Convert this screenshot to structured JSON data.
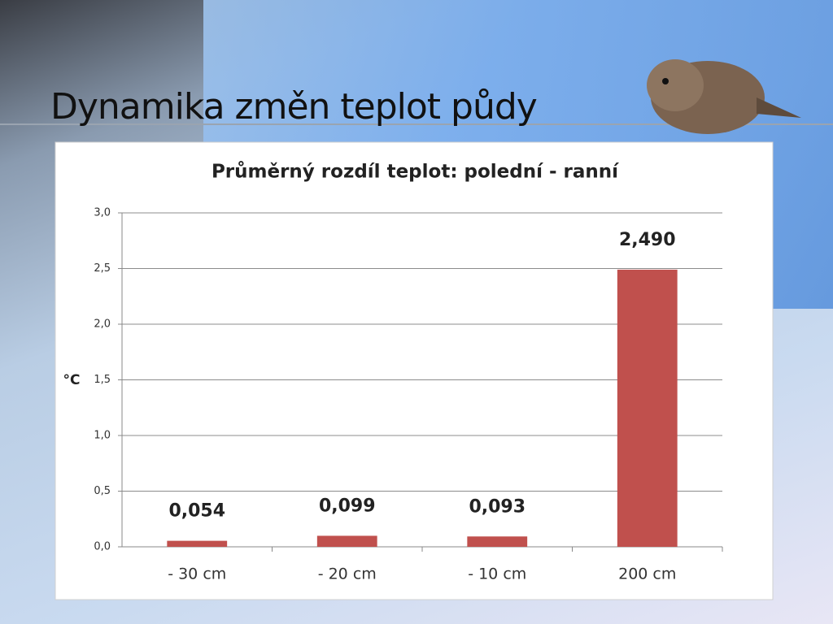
{
  "slide": {
    "title": "Dynamika změn teplot půdy"
  },
  "chart_data": {
    "type": "bar",
    "title": "Průměrný rozdíl teplot: polední - ranní",
    "y_label": "°C",
    "categories": [
      "- 30 cm",
      "- 20 cm",
      "- 10 cm",
      "200 cm"
    ],
    "values": [
      0.054,
      0.099,
      0.093,
      2.49
    ],
    "value_labels": [
      "0,054",
      "0,099",
      "0,093",
      "2,490"
    ],
    "color": "#c0504d",
    "ylim": [
      0,
      3
    ],
    "yticks": [
      {
        "value": 0,
        "label": "0,0"
      },
      {
        "value": 0.5,
        "label": "0,5"
      },
      {
        "value": 1,
        "label": "1,0"
      },
      {
        "value": 1.5,
        "label": "1,5"
      },
      {
        "value": 2,
        "label": "2,0"
      },
      {
        "value": 2.5,
        "label": "2,5"
      },
      {
        "value": 3,
        "label": "3,0"
      }
    ],
    "grid": true
  }
}
